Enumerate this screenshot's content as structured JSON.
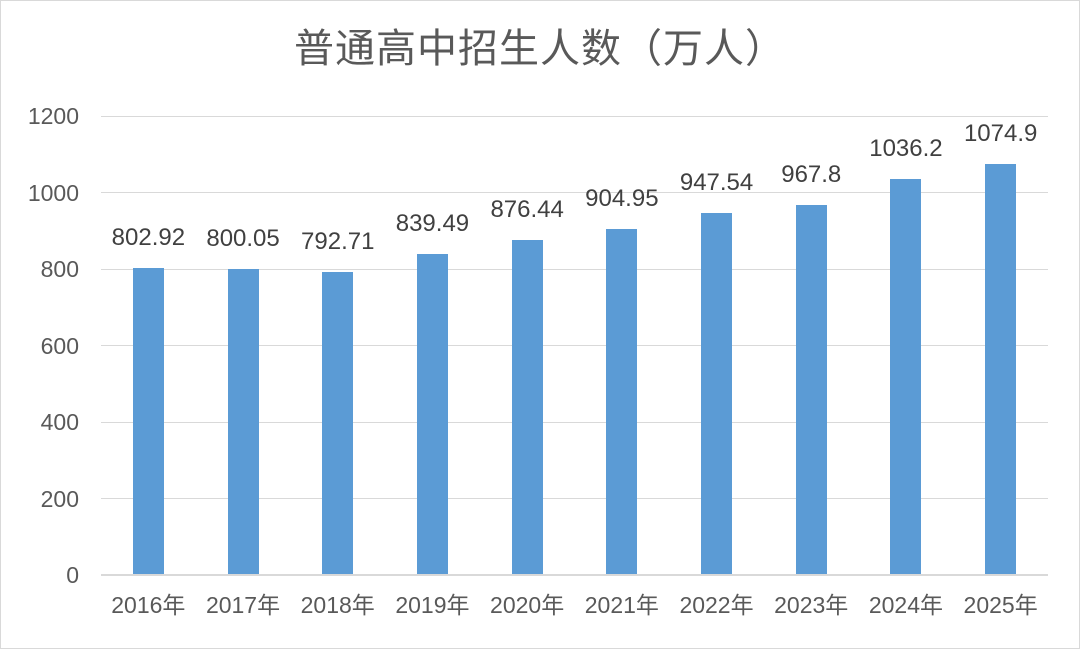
{
  "chart_data": {
    "type": "bar",
    "title": "普通高中招生人数（万人）",
    "categories": [
      "2016年",
      "2017年",
      "2018年",
      "2019年",
      "2020年",
      "2021年",
      "2022年",
      "2023年",
      "2024年",
      "2025年"
    ],
    "values": [
      802.92,
      800.05,
      792.71,
      839.49,
      876.44,
      904.95,
      947.54,
      967.8,
      1036.2,
      1074.9
    ],
    "value_labels": [
      "802.92",
      "800.05",
      "792.71",
      "839.49",
      "876.44",
      "904.95",
      "947.54",
      "967.8",
      "1036.2",
      "1074.9"
    ],
    "xlabel": "",
    "ylabel": "",
    "ylim": [
      0,
      1200
    ],
    "yticks": [
      0,
      200,
      400,
      600,
      800,
      1000,
      1200
    ],
    "grid": true,
    "legend": false,
    "colors": {
      "bar": "#5B9BD5",
      "gridline": "#D9D9D9",
      "axis_line": "#D9D9D9",
      "title": "#595959",
      "tick_label": "#595959",
      "data_label": "#404040",
      "background": "#FFFFFF",
      "frame_border": "#D9D9D9"
    }
  }
}
